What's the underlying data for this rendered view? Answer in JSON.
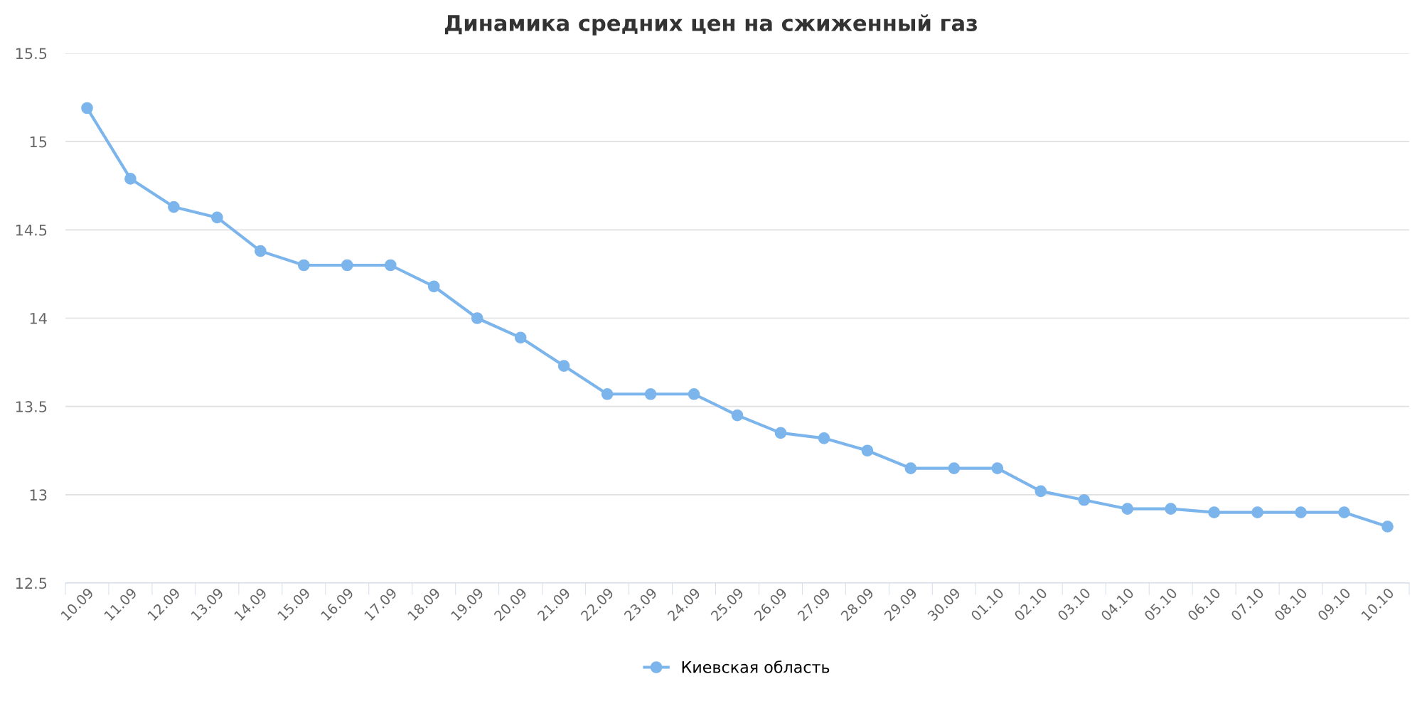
{
  "chart_data": {
    "type": "line",
    "title": "Динамика средних цен на сжиженный газ",
    "categories": [
      "10.09",
      "11.09",
      "12.09",
      "13.09",
      "14.09",
      "15.09",
      "16.09",
      "17.09",
      "18.09",
      "19.09",
      "20.09",
      "21.09",
      "22.09",
      "23.09",
      "24.09",
      "25.09",
      "26.09",
      "27.09",
      "28.09",
      "29.09",
      "30.09",
      "01.10",
      "02.10",
      "03.10",
      "04.10",
      "05.10",
      "06.10",
      "07.10",
      "08.10",
      "09.10",
      "10.10"
    ],
    "series": [
      {
        "name": "Киевская область",
        "color": "#7cb5ec",
        "values": [
          15.19,
          14.79,
          14.63,
          14.57,
          14.38,
          14.3,
          14.3,
          14.3,
          14.18,
          14.0,
          13.89,
          13.73,
          13.57,
          13.57,
          13.57,
          13.45,
          13.35,
          13.32,
          13.25,
          13.15,
          13.15,
          13.15,
          13.02,
          12.97,
          12.92,
          12.92,
          12.9,
          12.9,
          12.9,
          12.9,
          12.82
        ]
      }
    ],
    "ylim": [
      12.5,
      15.5
    ],
    "yticks": [
      12.5,
      13,
      13.5,
      14,
      14.5,
      15,
      15.5
    ],
    "grid": "y",
    "legend": "bottom",
    "marker": "circle",
    "line_style": "solid"
  }
}
